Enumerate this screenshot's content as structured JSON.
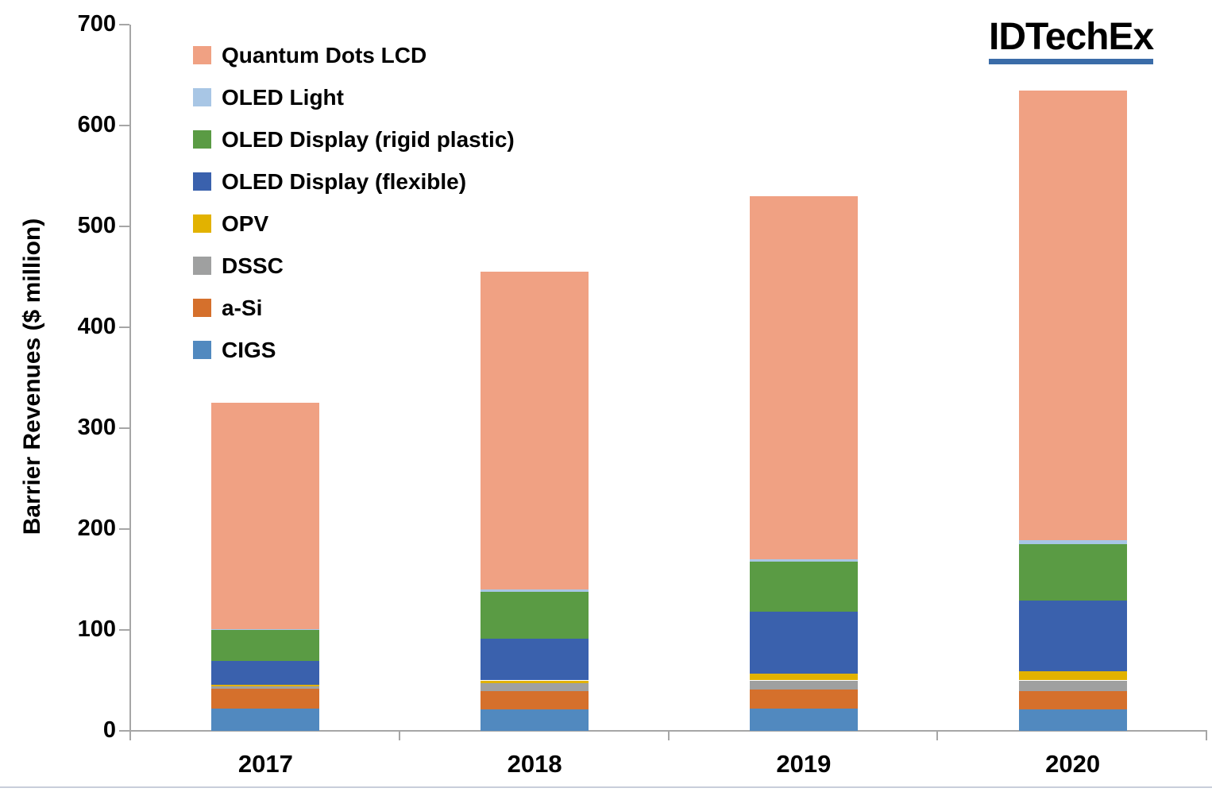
{
  "logo": {
    "text": "IDTechEx",
    "underline_color": "#3a6ca8"
  },
  "colors": {
    "axis": "#a6a6a6",
    "text": "#000000",
    "background": "#ffffff",
    "bottom_rule": "#c8ceda"
  },
  "chart_data": {
    "type": "bar",
    "stacked": true,
    "title": "",
    "xlabel": "",
    "ylabel": "Barrier Revenues ($ million)",
    "categories": [
      "2017",
      "2018",
      "2019",
      "2020"
    ],
    "series": [
      {
        "name": "CIGS",
        "color": "#5189bf",
        "values": [
          22,
          21,
          22,
          21
        ]
      },
      {
        "name": "a-Si",
        "color": "#d5702c",
        "values": [
          20,
          18,
          19,
          18
        ]
      },
      {
        "name": "DSSC",
        "color": "#9fa0a0",
        "values": [
          2,
          8,
          9,
          11
        ]
      },
      {
        "name": "OPV",
        "color": "#e2b200",
        "values": [
          2,
          3,
          7,
          9
        ]
      },
      {
        "name": "OLED Display (flexible)",
        "color": "#3a61ad",
        "values": [
          23,
          41,
          61,
          70
        ]
      },
      {
        "name": "OLED Display (rigid plastic)",
        "color": "#5a9b44",
        "values": [
          31,
          47,
          50,
          56
        ]
      },
      {
        "name": "OLED Light",
        "color": "#a8c6e5",
        "values": [
          1,
          2,
          2,
          4
        ]
      },
      {
        "name": "Quantum Dots LCD",
        "color": "#f0a183",
        "values": [
          224,
          315,
          360,
          446
        ]
      }
    ],
    "totals": [
      325,
      455,
      530,
      635
    ],
    "ylim": [
      0,
      700
    ],
    "yticks": [
      0,
      100,
      200,
      300,
      400,
      500,
      600,
      700
    ],
    "grid": false,
    "legend_position": "upper-left",
    "legend_order": [
      "Quantum Dots LCD",
      "OLED Light",
      "OLED Display (rigid plastic)",
      "OLED Display (flexible)",
      "OPV",
      "DSSC",
      "a-Si",
      "CIGS"
    ]
  }
}
